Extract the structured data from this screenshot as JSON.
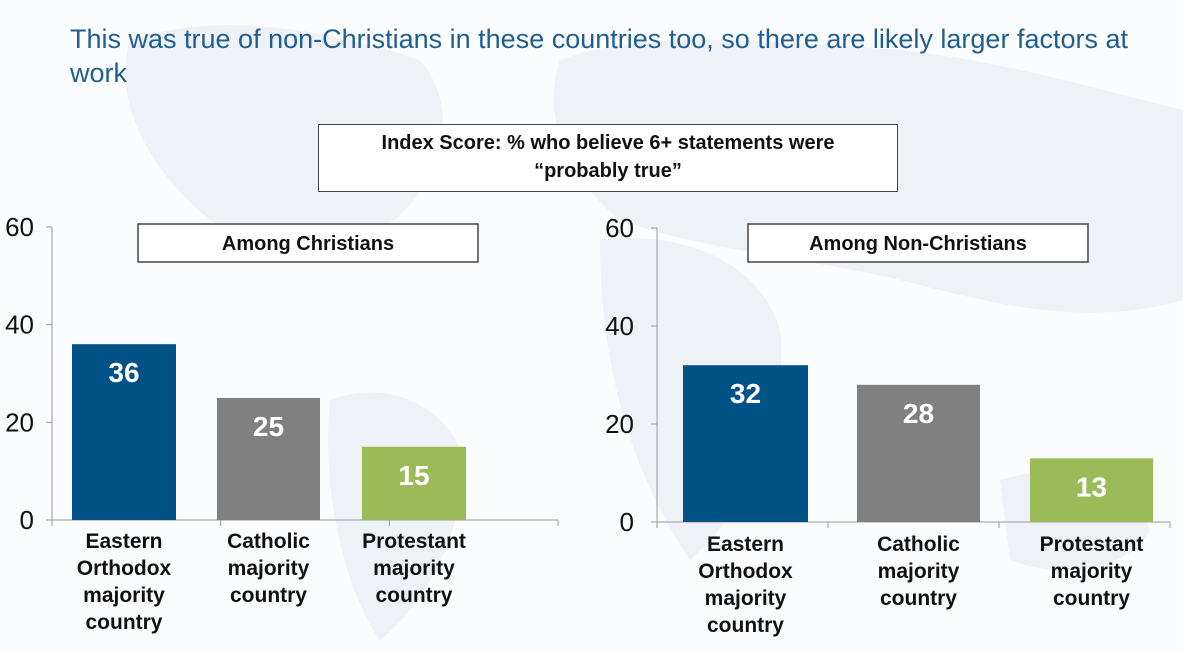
{
  "slide": {
    "title": "This was true of non-Christians in these countries too, so there are likely larger factors at work",
    "box_title_line1": "Index Score: % who believe 6+ statements were",
    "box_title_line2": "“probably true”"
  },
  "chart_data": [
    {
      "type": "bar",
      "title": "Among Christians",
      "categories": [
        [
          "Eastern",
          "Orthodox",
          "majority",
          "country"
        ],
        [
          "Catholic",
          "majority",
          "country"
        ],
        [
          "Protestant",
          "majority",
          "country"
        ]
      ],
      "values": [
        36,
        25,
        15
      ],
      "colors": [
        "#015287",
        "#808080",
        "#9bbb59"
      ],
      "ylim": [
        0,
        60
      ],
      "yticks": [
        0,
        20,
        40,
        60
      ],
      "grid": false,
      "data_labels": true
    },
    {
      "type": "bar",
      "title": "Among Non-Christians",
      "categories": [
        [
          "Eastern",
          "Orthodox",
          "majority",
          "country"
        ],
        [
          "Catholic",
          "majority",
          "country"
        ],
        [
          "Protestant",
          "majority",
          "country"
        ]
      ],
      "values": [
        32,
        28,
        13
      ],
      "colors": [
        "#015287",
        "#808080",
        "#9bbb59"
      ],
      "ylim": [
        0,
        60
      ],
      "yticks": [
        0,
        20,
        40,
        60
      ],
      "grid": false,
      "data_labels": true
    }
  ]
}
